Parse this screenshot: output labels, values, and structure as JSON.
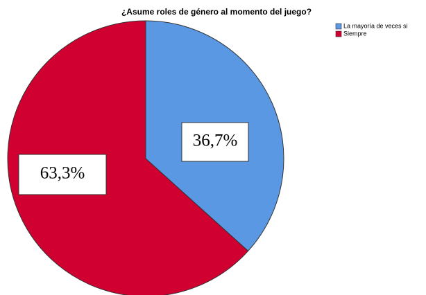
{
  "chart_data": {
    "type": "pie",
    "title": "¿Asume roles de género al momento del juego?",
    "categories": [
      "La mayoría de veces si",
      "Siempre"
    ],
    "values": [
      36.7,
      63.3
    ],
    "value_labels": [
      "36,7%",
      "63,3%"
    ],
    "colors": [
      "#5a98e4",
      "#d00030"
    ],
    "legend": "top-right"
  }
}
